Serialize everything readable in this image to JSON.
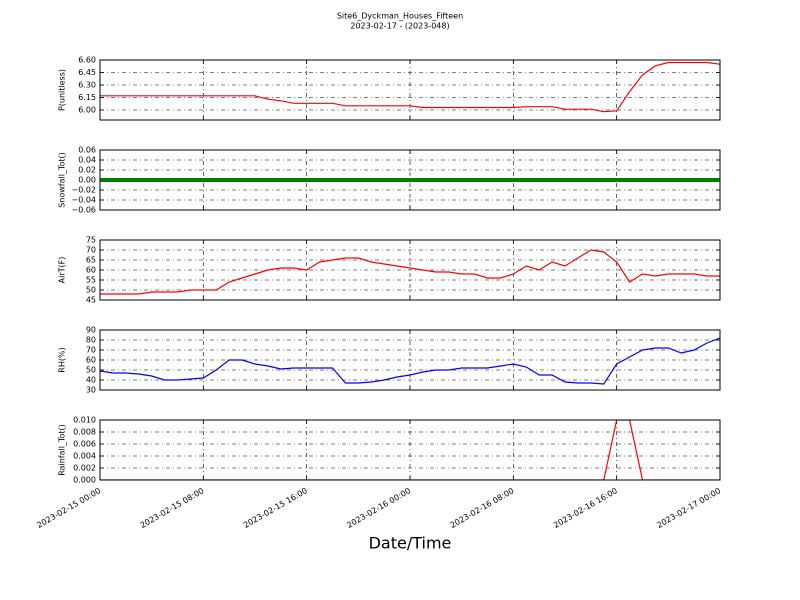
{
  "chart_data": [
    {
      "type": "line",
      "title": "Site6_Dyckman_Houses_Fifteen",
      "subtitle": "2023-02-17 - (2023-048)",
      "ylabel": "P(unitless)",
      "color": "#ff0000",
      "x": [
        "2023-02-15 00:00",
        "2023-02-15 01:00",
        "2023-02-15 02:00",
        "2023-02-15 03:00",
        "2023-02-15 04:00",
        "2023-02-15 05:00",
        "2023-02-15 06:00",
        "2023-02-15 07:00",
        "2023-02-15 08:00",
        "2023-02-15 09:00",
        "2023-02-15 10:00",
        "2023-02-15 11:00",
        "2023-02-15 12:00",
        "2023-02-15 13:00",
        "2023-02-15 14:00",
        "2023-02-15 15:00",
        "2023-02-15 16:00",
        "2023-02-15 17:00",
        "2023-02-15 18:00",
        "2023-02-15 19:00",
        "2023-02-15 20:00",
        "2023-02-15 21:00",
        "2023-02-15 22:00",
        "2023-02-15 23:00",
        "2023-02-16 00:00",
        "2023-02-16 01:00",
        "2023-02-16 02:00",
        "2023-02-16 03:00",
        "2023-02-16 04:00",
        "2023-02-16 05:00",
        "2023-02-16 06:00",
        "2023-02-16 07:00",
        "2023-02-16 08:00",
        "2023-02-16 09:00",
        "2023-02-16 10:00",
        "2023-02-16 11:00",
        "2023-02-16 12:00",
        "2023-02-16 13:00",
        "2023-02-16 14:00",
        "2023-02-16 15:00",
        "2023-02-16 16:00",
        "2023-02-16 17:00",
        "2023-02-16 18:00",
        "2023-02-16 19:00",
        "2023-02-16 20:00",
        "2023-02-16 21:00",
        "2023-02-16 22:00",
        "2023-02-16 23:00",
        "2023-02-17 00:00"
      ],
      "values": [
        6.17,
        6.17,
        6.17,
        6.17,
        6.17,
        6.17,
        6.17,
        6.17,
        6.17,
        6.17,
        6.17,
        6.17,
        6.17,
        6.13,
        6.11,
        6.08,
        6.08,
        6.08,
        6.08,
        6.05,
        6.05,
        6.05,
        6.05,
        6.05,
        6.05,
        6.03,
        6.03,
        6.03,
        6.03,
        6.03,
        6.03,
        6.03,
        6.03,
        6.04,
        6.04,
        6.04,
        6.01,
        6.01,
        6.01,
        5.98,
        5.99,
        6.22,
        6.42,
        6.53,
        6.57,
        6.57,
        6.57,
        6.57,
        6.55
      ],
      "xlim": [
        "2023-02-15 00:00",
        "2023-02-17 00:00"
      ],
      "ylim": [
        5.88,
        6.6
      ],
      "yticks": [
        {
          "value": 6.0,
          "label": "6.00"
        },
        6.15,
        {
          "value": 6.3,
          "label": "6.30"
        },
        6.45,
        {
          "value": 6.6,
          "label": "6.60"
        }
      ],
      "grid": true
    },
    {
      "type": "line",
      "ylabel": "Snowfall_Tot()",
      "color": "#008000",
      "x": [
        "2023-02-15 00:00",
        "2023-02-15 01:00",
        "2023-02-15 02:00",
        "2023-02-15 03:00",
        "2023-02-15 04:00",
        "2023-02-15 05:00",
        "2023-02-15 06:00",
        "2023-02-15 07:00",
        "2023-02-15 08:00",
        "2023-02-15 09:00",
        "2023-02-15 10:00",
        "2023-02-15 11:00",
        "2023-02-15 12:00",
        "2023-02-15 13:00",
        "2023-02-15 14:00",
        "2023-02-15 15:00",
        "2023-02-15 16:00",
        "2023-02-15 17:00",
        "2023-02-15 18:00",
        "2023-02-15 19:00",
        "2023-02-15 20:00",
        "2023-02-15 21:00",
        "2023-02-15 22:00",
        "2023-02-15 23:00",
        "2023-02-16 00:00",
        "2023-02-16 01:00",
        "2023-02-16 02:00",
        "2023-02-16 03:00",
        "2023-02-16 04:00",
        "2023-02-16 05:00",
        "2023-02-16 06:00",
        "2023-02-16 07:00",
        "2023-02-16 08:00",
        "2023-02-16 09:00",
        "2023-02-16 10:00",
        "2023-02-16 11:00",
        "2023-02-16 12:00",
        "2023-02-16 13:00",
        "2023-02-16 14:00",
        "2023-02-16 15:00",
        "2023-02-16 16:00",
        "2023-02-16 17:00",
        "2023-02-16 18:00",
        "2023-02-16 19:00",
        "2023-02-16 20:00",
        "2023-02-16 21:00",
        "2023-02-16 22:00",
        "2023-02-16 23:00",
        "2023-02-17 00:00"
      ],
      "values": [
        0,
        0,
        0,
        0,
        0,
        0,
        0,
        0,
        0,
        0,
        0,
        0,
        0,
        0,
        0,
        0,
        0,
        0,
        0,
        0,
        0,
        0,
        0,
        0,
        0,
        0,
        0,
        0,
        0,
        0,
        0,
        0,
        0,
        0,
        0,
        0,
        0,
        0,
        0,
        0,
        0,
        0,
        0,
        0,
        0,
        0,
        0,
        0,
        0
      ],
      "xlim": [
        "2023-02-15 00:00",
        "2023-02-17 00:00"
      ],
      "ylim": [
        -0.06,
        0.06
      ],
      "yticks": [
        {
          "value": -0.06,
          "label": "−0.06"
        },
        {
          "value": -0.04,
          "label": "−0.04"
        },
        {
          "value": -0.02,
          "label": "−0.02"
        },
        {
          "value": 0,
          "label": "0.00"
        },
        {
          "value": 0.02,
          "label": "0.02"
        },
        {
          "value": 0.04,
          "label": "0.04"
        },
        {
          "value": 0.06,
          "label": "0.06"
        }
      ],
      "grid": true
    },
    {
      "type": "line",
      "ylabel": "AirT(F)",
      "color": "#ff0000",
      "x": [
        "2023-02-15 00:00",
        "2023-02-15 01:00",
        "2023-02-15 02:00",
        "2023-02-15 03:00",
        "2023-02-15 04:00",
        "2023-02-15 05:00",
        "2023-02-15 06:00",
        "2023-02-15 07:00",
        "2023-02-15 08:00",
        "2023-02-15 09:00",
        "2023-02-15 10:00",
        "2023-02-15 11:00",
        "2023-02-15 12:00",
        "2023-02-15 13:00",
        "2023-02-15 14:00",
        "2023-02-15 15:00",
        "2023-02-15 16:00",
        "2023-02-15 17:00",
        "2023-02-15 18:00",
        "2023-02-15 19:00",
        "2023-02-15 20:00",
        "2023-02-15 21:00",
        "2023-02-15 22:00",
        "2023-02-15 23:00",
        "2023-02-16 00:00",
        "2023-02-16 01:00",
        "2023-02-16 02:00",
        "2023-02-16 03:00",
        "2023-02-16 04:00",
        "2023-02-16 05:00",
        "2023-02-16 06:00",
        "2023-02-16 07:00",
        "2023-02-16 08:00",
        "2023-02-16 09:00",
        "2023-02-16 10:00",
        "2023-02-16 11:00",
        "2023-02-16 12:00",
        "2023-02-16 13:00",
        "2023-02-16 14:00",
        "2023-02-16 15:00",
        "2023-02-16 16:00",
        "2023-02-16 17:00",
        "2023-02-16 18:00",
        "2023-02-16 19:00",
        "2023-02-16 20:00",
        "2023-02-16 21:00",
        "2023-02-16 22:00",
        "2023-02-16 23:00",
        "2023-02-17 00:00"
      ],
      "values": [
        48,
        48,
        48,
        48,
        49,
        49,
        49,
        50,
        50,
        50,
        54,
        56,
        58,
        60,
        61,
        61,
        60,
        64,
        65,
        66,
        66,
        64,
        63,
        62,
        61,
        60,
        59,
        59,
        58,
        58,
        56,
        56,
        58,
        62,
        60,
        64,
        62,
        66,
        70,
        69,
        64,
        54,
        58,
        57,
        58,
        58,
        58,
        57,
        57
      ],
      "xlim": [
        "2023-02-15 00:00",
        "2023-02-17 00:00"
      ],
      "ylim": [
        45,
        75
      ],
      "yticks": [
        45,
        50,
        55,
        60,
        65,
        70,
        75
      ],
      "grid": true
    },
    {
      "type": "line",
      "ylabel": "RH(%)",
      "color": "#0000ff",
      "x": [
        "2023-02-15 00:00",
        "2023-02-15 01:00",
        "2023-02-15 02:00",
        "2023-02-15 03:00",
        "2023-02-15 04:00",
        "2023-02-15 05:00",
        "2023-02-15 06:00",
        "2023-02-15 07:00",
        "2023-02-15 08:00",
        "2023-02-15 09:00",
        "2023-02-15 10:00",
        "2023-02-15 11:00",
        "2023-02-15 12:00",
        "2023-02-15 13:00",
        "2023-02-15 14:00",
        "2023-02-15 15:00",
        "2023-02-15 16:00",
        "2023-02-15 17:00",
        "2023-02-15 18:00",
        "2023-02-15 19:00",
        "2023-02-15 20:00",
        "2023-02-15 21:00",
        "2023-02-15 22:00",
        "2023-02-15 23:00",
        "2023-02-16 00:00",
        "2023-02-16 01:00",
        "2023-02-16 02:00",
        "2023-02-16 03:00",
        "2023-02-16 04:00",
        "2023-02-16 05:00",
        "2023-02-16 06:00",
        "2023-02-16 07:00",
        "2023-02-16 08:00",
        "2023-02-16 09:00",
        "2023-02-16 10:00",
        "2023-02-16 11:00",
        "2023-02-16 12:00",
        "2023-02-16 13:00",
        "2023-02-16 14:00",
        "2023-02-16 15:00",
        "2023-02-16 16:00",
        "2023-02-16 17:00",
        "2023-02-16 18:00",
        "2023-02-16 19:00",
        "2023-02-16 20:00",
        "2023-02-16 21:00",
        "2023-02-16 22:00",
        "2023-02-16 23:00",
        "2023-02-17 00:00"
      ],
      "values": [
        49,
        47,
        47,
        46,
        44,
        40,
        40,
        41,
        42,
        50,
        60,
        60,
        56,
        54,
        51,
        52,
        52,
        52,
        52,
        37,
        37,
        38,
        40,
        43,
        45,
        48,
        50,
        50,
        52,
        52,
        52,
        54,
        56,
        53,
        45,
        45,
        38,
        37,
        37,
        36,
        56,
        63,
        70,
        72,
        72,
        67,
        70,
        77,
        82
      ],
      "xlim": [
        "2023-02-15 00:00",
        "2023-02-17 00:00"
      ],
      "ylim": [
        30,
        90
      ],
      "yticks": [
        30,
        40,
        50,
        60,
        70,
        80,
        90
      ],
      "grid": true
    },
    {
      "type": "line",
      "ylabel": "Rainfall_Tot()",
      "color": "#ff0000",
      "xlabel": "Date/Time",
      "x": [
        "2023-02-15 00:00",
        "2023-02-15 01:00",
        "2023-02-15 02:00",
        "2023-02-15 03:00",
        "2023-02-15 04:00",
        "2023-02-15 05:00",
        "2023-02-15 06:00",
        "2023-02-15 07:00",
        "2023-02-15 08:00",
        "2023-02-15 09:00",
        "2023-02-15 10:00",
        "2023-02-15 11:00",
        "2023-02-15 12:00",
        "2023-02-15 13:00",
        "2023-02-15 14:00",
        "2023-02-15 15:00",
        "2023-02-15 16:00",
        "2023-02-15 17:00",
        "2023-02-15 18:00",
        "2023-02-15 19:00",
        "2023-02-15 20:00",
        "2023-02-15 21:00",
        "2023-02-15 22:00",
        "2023-02-15 23:00",
        "2023-02-16 00:00",
        "2023-02-16 01:00",
        "2023-02-16 02:00",
        "2023-02-16 03:00",
        "2023-02-16 04:00",
        "2023-02-16 05:00",
        "2023-02-16 06:00",
        "2023-02-16 07:00",
        "2023-02-16 08:00",
        "2023-02-16 09:00",
        "2023-02-16 10:00",
        "2023-02-16 11:00",
        "2023-02-16 12:00",
        "2023-02-16 13:00",
        "2023-02-16 14:00",
        "2023-02-16 15:00",
        "2023-02-16 16:00",
        "2023-02-16 17:00",
        "2023-02-16 18:00",
        "2023-02-16 19:00",
        "2023-02-16 20:00",
        "2023-02-16 21:00",
        "2023-02-16 22:00",
        "2023-02-16 23:00",
        "2023-02-17 00:00"
      ],
      "values": [
        0,
        0,
        0,
        0,
        0,
        0,
        0,
        0,
        0,
        0,
        0,
        0,
        0,
        0,
        0,
        0,
        0,
        0,
        0,
        0,
        0,
        0,
        0,
        0,
        0,
        0,
        0,
        0,
        0,
        0,
        0,
        0,
        0,
        0,
        0,
        0,
        0,
        0,
        0,
        0,
        0.01,
        0.01,
        0,
        0,
        0,
        0,
        0,
        0,
        0
      ],
      "xlim": [
        "2023-02-15 00:00",
        "2023-02-17 00:00"
      ],
      "ylim": [
        0,
        0.01
      ],
      "yticks": [
        {
          "value": 0,
          "label": "0.000"
        },
        {
          "value": 0.002,
          "label": "0.002"
        },
        {
          "value": 0.004,
          "label": "0.004"
        },
        {
          "value": 0.006,
          "label": "0.006"
        },
        {
          "value": 0.008,
          "label": "0.008"
        },
        {
          "value": 0.01,
          "label": "0.010"
        }
      ],
      "xticks": [
        "2023-02-15 00:00",
        "2023-02-15 08:00",
        "2023-02-15 16:00",
        "2023-02-16 00:00",
        "2023-02-16 08:00",
        "2023-02-16 16:00",
        "2023-02-17 00:00"
      ],
      "grid": true
    }
  ]
}
